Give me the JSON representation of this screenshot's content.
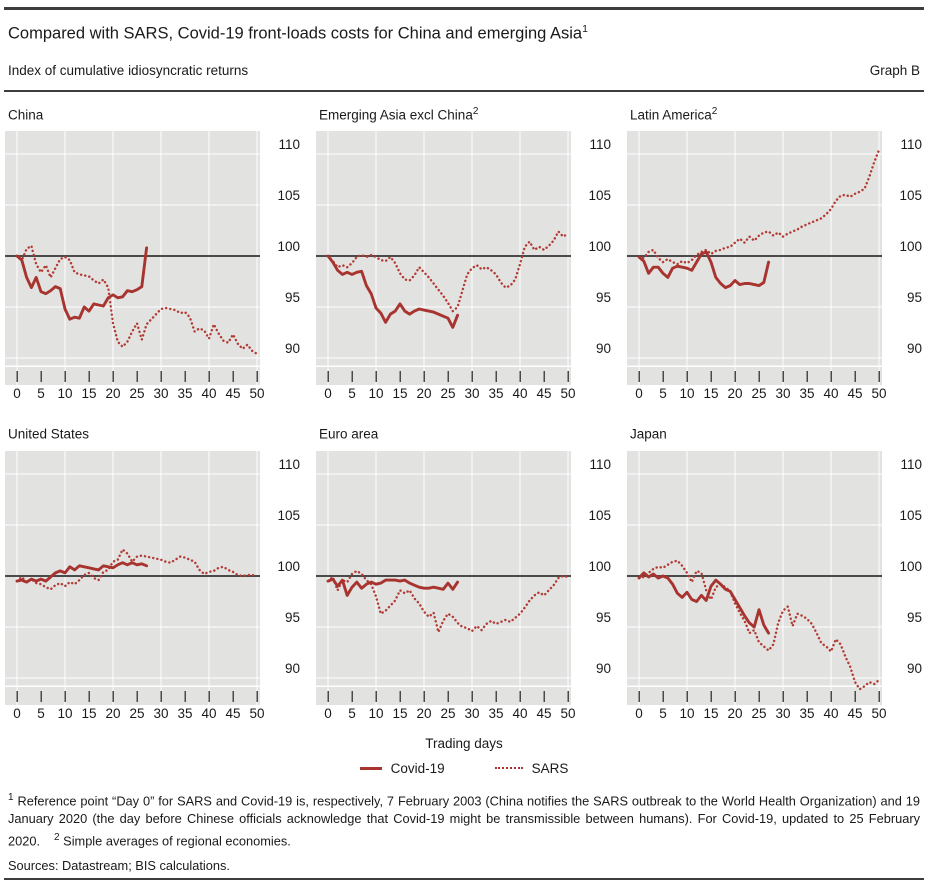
{
  "header": {
    "title": "Compared with SARS, Covid-19 front-loads costs for China and emerging Asia",
    "title_sup": "1",
    "subtitle": "Index of cumulative idiosyncratic returns",
    "graph_label": "Graph B"
  },
  "legend": {
    "items": [
      {
        "label": "Covid-19",
        "style": "solid"
      },
      {
        "label": "SARS",
        "style": "dotted"
      }
    ],
    "position": "bottom-center"
  },
  "footnotes": {
    "note1_sup": "1",
    "note1": "Reference point “Day 0” for SARS and Covid-19 is, respectively, 7 February 2003 (China notifies the SARS outbreak to the World Health Organization) and 19 January 2020 (the day before Chinese officials acknowledge that Covid-19 might be transmissible between humans). For Covid-19, updated to 25 February 2020.",
    "note2_sup": "2",
    "note2": "Simple averages of regional economies.",
    "sources": "Sources: Datastream; BIS calculations."
  },
  "colors": {
    "covid": "#a8342f",
    "sars": "#b23b33",
    "plot_bg": "#e2e2e1",
    "grid": "#ffffff",
    "refline": "#4a4a4a",
    "tick": "#4a4a4a",
    "text": "#1a1a1a"
  },
  "chart_data": {
    "type": "line",
    "title": "Index of cumulative idiosyncratic returns",
    "xlabel": "Trading days",
    "ylabel": "",
    "x_ticks": [
      0,
      5,
      10,
      15,
      20,
      25,
      30,
      35,
      40,
      45,
      50
    ],
    "x_gridlines": [
      0,
      10,
      20,
      30,
      40,
      50
    ],
    "y_ticks": [
      110,
      105,
      100,
      95,
      90
    ],
    "ylim": [
      89.2,
      112.3
    ],
    "refline": 100,
    "grid": true,
    "covid_day_range": [
      0,
      27
    ],
    "sars_day_range": [
      0,
      50
    ],
    "panels": [
      {
        "title": "China",
        "sup": "",
        "covid": [
          100,
          99.6,
          97.9,
          96.9,
          97.9,
          96.5,
          96.3,
          96.6,
          97.0,
          96.8,
          94.8,
          93.8,
          94.0,
          93.9,
          95.0,
          94.6,
          95.3,
          95.2,
          95.1,
          95.9,
          96.2,
          95.9,
          96.0,
          96.6,
          96.5,
          96.7,
          97.0,
          100.8
        ],
        "sars": [
          100,
          99.6,
          100.7,
          101.0,
          99.2,
          98.4,
          99.1,
          97.9,
          98.8,
          99.7,
          99.9,
          99.6,
          98.4,
          98.2,
          98.1,
          98.0,
          97.6,
          97.3,
          97.7,
          96.9,
          93.4,
          91.6,
          91.1,
          91.6,
          92.6,
          93.4,
          91.8,
          93.3,
          93.8,
          94.3,
          94.8,
          94.9,
          94.8,
          94.7,
          94.4,
          94.5,
          94.0,
          92.6,
          92.9,
          92.7,
          91.9,
          93.3,
          92.4,
          91.7,
          91.5,
          92.3,
          91.4,
          90.9,
          91.3,
          90.7,
          90.4
        ]
      },
      {
        "title": "Emerging Asia excl China",
        "sup": "2",
        "covid": [
          100,
          99.4,
          98.6,
          98.2,
          98.4,
          98.2,
          98.4,
          98.5,
          97.1,
          96.3,
          94.9,
          94.4,
          93.5,
          94.3,
          94.6,
          95.3,
          94.6,
          94.3,
          94.6,
          94.8,
          94.7,
          94.6,
          94.5,
          94.3,
          94.1,
          93.9,
          93.0,
          94.2
        ],
        "sars": [
          100,
          99.5,
          98.9,
          99.1,
          98.9,
          99.3,
          99.9,
          100.1,
          99.9,
          100.1,
          99.9,
          99.6,
          99.5,
          99.9,
          99.3,
          98.3,
          97.7,
          97.6,
          98.1,
          98.9,
          98.4,
          97.9,
          97.3,
          96.7,
          96.1,
          95.4,
          94.6,
          95.0,
          96.6,
          98.2,
          98.8,
          99.1,
          98.7,
          98.9,
          98.6,
          98.2,
          97.4,
          96.9,
          97.1,
          97.7,
          99.2,
          100.9,
          101.4,
          100.6,
          100.9,
          100.6,
          101.0,
          101.5,
          102.4,
          101.9,
          102.2
        ]
      },
      {
        "title": "Latin America",
        "sup": "2",
        "covid": [
          99.9,
          99.5,
          98.3,
          98.9,
          98.9,
          98.3,
          97.9,
          98.8,
          99.0,
          98.9,
          98.8,
          98.6,
          99.4,
          100.2,
          100.4,
          99.4,
          97.9,
          97.3,
          96.9,
          97.1,
          97.6,
          97.2,
          97.3,
          97.3,
          97.2,
          97.1,
          97.4,
          99.4
        ],
        "sars": [
          99.9,
          99.8,
          100.4,
          100.6,
          99.8,
          99.4,
          99.7,
          99.4,
          99.2,
          99.5,
          99.3,
          99.6,
          100.1,
          100.4,
          100.6,
          100.2,
          100.5,
          100.6,
          100.8,
          100.9,
          101.3,
          101.7,
          101.3,
          101.9,
          101.5,
          102.0,
          102.3,
          102.4,
          102.0,
          102.3,
          101.9,
          102.2,
          102.4,
          102.6,
          102.9,
          103.1,
          103.3,
          103.5,
          103.7,
          104.1,
          104.6,
          105.4,
          105.9,
          106.0,
          105.8,
          106.1,
          106.3,
          106.6,
          107.8,
          109.2,
          110.4
        ]
      },
      {
        "title": "United States",
        "sup": "",
        "covid": [
          99.5,
          99.6,
          99.4,
          99.7,
          99.5,
          99.7,
          99.5,
          99.9,
          100.3,
          100.5,
          100.3,
          100.9,
          100.6,
          101.0,
          100.9,
          100.8,
          100.7,
          100.6,
          101.0,
          100.9,
          100.8,
          101.1,
          101.3,
          101.1,
          101.3,
          101.1,
          101.2,
          101.0
        ],
        "sars": [
          99.5,
          99.9,
          99.4,
          99.7,
          99.3,
          99.2,
          98.9,
          98.7,
          99.1,
          99.3,
          99.0,
          99.4,
          99.2,
          99.6,
          100.1,
          100.3,
          99.8,
          99.6,
          100.4,
          100.6,
          101.4,
          101.6,
          102.6,
          102.2,
          101.4,
          101.9,
          102.0,
          101.9,
          101.8,
          101.7,
          101.6,
          101.4,
          101.3,
          101.6,
          101.9,
          101.8,
          101.6,
          101.4,
          100.6,
          100.2,
          100.4,
          100.5,
          100.8,
          100.9,
          100.6,
          100.4,
          100.1,
          100.0,
          100.1,
          100.1,
          100.0
        ]
      },
      {
        "title": "Euro area",
        "sup": "",
        "covid": [
          99.5,
          99.7,
          99.0,
          99.6,
          98.1,
          98.9,
          99.4,
          98.8,
          99.2,
          99.4,
          99.2,
          99.3,
          99.6,
          99.6,
          99.6,
          99.5,
          99.6,
          99.3,
          99.1,
          98.9,
          98.8,
          98.8,
          98.9,
          98.8,
          98.7,
          99.3,
          98.7,
          99.4
        ],
        "sars": [
          99.5,
          99.9,
          98.6,
          99.6,
          99.4,
          100.2,
          100.5,
          100.2,
          99.6,
          99.2,
          98.0,
          96.3,
          96.6,
          97.1,
          97.6,
          98.6,
          98.3,
          98.6,
          97.8,
          97.3,
          96.5,
          96.0,
          96.4,
          94.5,
          95.6,
          96.3,
          96.0,
          95.4,
          95.0,
          94.9,
          94.6,
          95.1,
          94.7,
          95.3,
          95.6,
          95.3,
          95.5,
          95.7,
          95.5,
          95.9,
          96.3,
          96.9,
          97.6,
          98.1,
          98.4,
          98.1,
          98.6,
          99.1,
          99.8,
          100.0,
          99.9
        ]
      },
      {
        "title": "Japan",
        "sup": "",
        "covid": [
          99.8,
          100.3,
          99.9,
          100.2,
          99.8,
          100.0,
          99.8,
          99.2,
          98.3,
          97.9,
          98.4,
          97.7,
          97.5,
          98.1,
          97.6,
          99.0,
          99.6,
          99.2,
          98.7,
          98.5,
          97.7,
          96.9,
          96.1,
          95.4,
          95.0,
          96.7,
          95.2,
          94.4
        ],
        "sars": [
          99.8,
          99.9,
          100.3,
          100.7,
          100.9,
          100.8,
          101.1,
          101.4,
          101.5,
          101.0,
          100.3,
          99.4,
          100.5,
          100.3,
          98.6,
          97.7,
          98.9,
          99.2,
          98.9,
          98.5,
          97.3,
          96.4,
          95.6,
          94.4,
          94.7,
          93.5,
          93.1,
          92.7,
          93.3,
          95.4,
          96.6,
          97.0,
          95.1,
          96.3,
          96.1,
          95.8,
          95.3,
          94.4,
          93.4,
          93.1,
          92.6,
          93.8,
          93.3,
          92.1,
          91.1,
          89.6,
          88.9,
          89.2,
          89.6,
          89.4,
          89.8
        ]
      }
    ]
  }
}
